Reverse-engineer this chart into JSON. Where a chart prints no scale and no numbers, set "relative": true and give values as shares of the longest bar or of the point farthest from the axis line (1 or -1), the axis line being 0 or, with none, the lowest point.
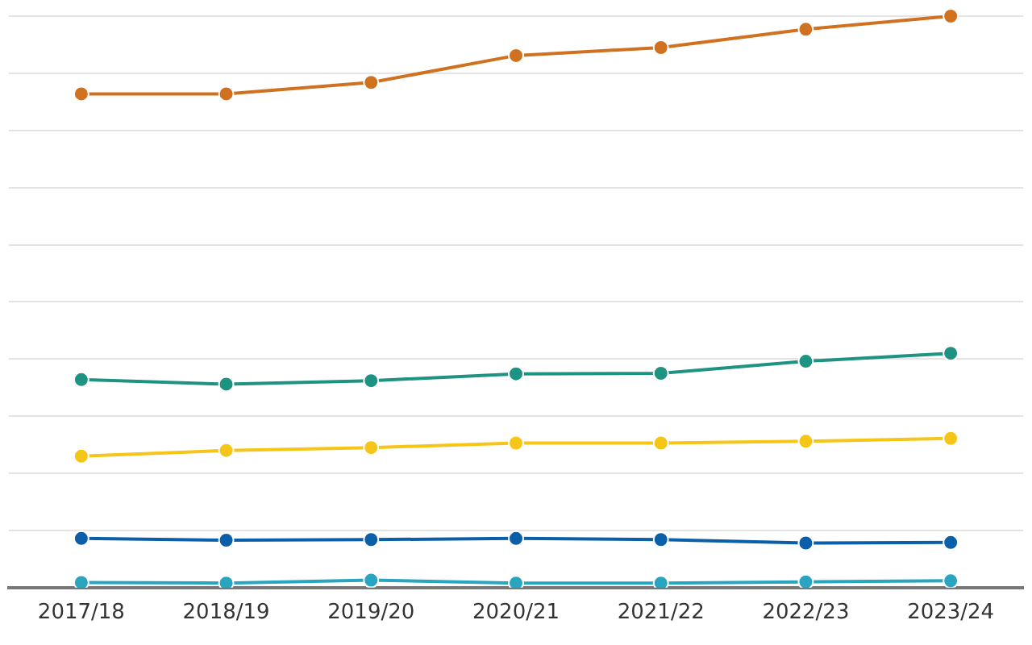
{
  "chart_data": {
    "type": "line",
    "relative": true,
    "categories": [
      "2017/18",
      "2018/19",
      "2019/20",
      "2020/21",
      "2021/22",
      "2022/23",
      "2023/24"
    ],
    "series": [
      {
        "color": "#d0711f",
        "values": [
          0.864,
          0.864,
          0.884,
          0.931,
          0.945,
          0.977,
          1
        ]
      },
      {
        "color": "#1f9382",
        "values": [
          0.364,
          0.356,
          0.362,
          0.374,
          0.375,
          0.396,
          0.41
        ]
      },
      {
        "color": "#f5c518",
        "values": [
          0.23,
          0.24,
          0.245,
          0.253,
          0.253,
          0.256,
          0.261
        ]
      },
      {
        "color": "#0b5ea8",
        "values": [
          0.086,
          0.083,
          0.084,
          0.086,
          0.084,
          0.078,
          0.079
        ]
      },
      {
        "color": "#2aa5c0",
        "values": [
          0.009,
          0.008,
          0.013,
          0.008,
          0.008,
          0.01,
          0.012
        ]
      }
    ],
    "grid": "y",
    "legend": false,
    "marker": "circle",
    "line_style": "solid"
  }
}
